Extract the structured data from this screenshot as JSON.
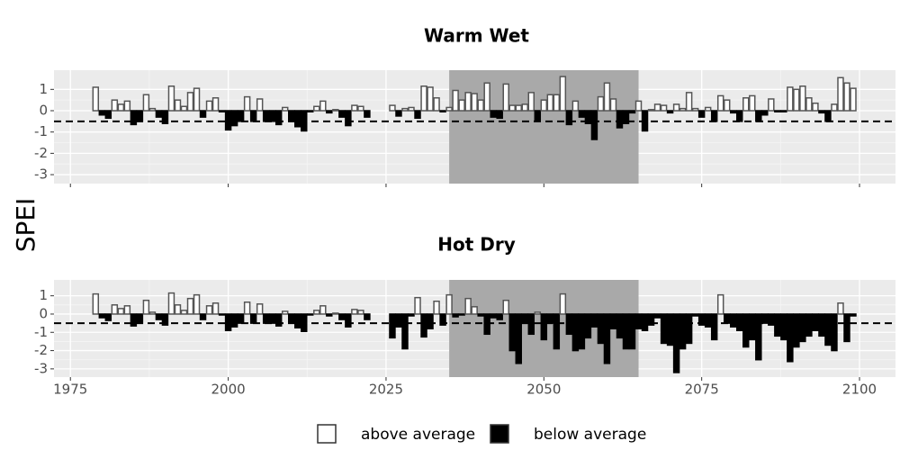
{
  "chart_data": [
    {
      "type": "bar",
      "title": "Warm Wet",
      "x": [
        1979,
        1980,
        1981,
        1982,
        1983,
        1984,
        1985,
        1986,
        1987,
        1988,
        1989,
        1990,
        1991,
        1992,
        1993,
        1994,
        1995,
        1996,
        1997,
        1998,
        1999,
        2000,
        2001,
        2002,
        2003,
        2004,
        2005,
        2006,
        2007,
        2008,
        2009,
        2010,
        2011,
        2012,
        2013,
        2014,
        2015,
        2016,
        2017,
        2018,
        2019,
        2020,
        2021,
        2022,
        2026,
        2027,
        2028,
        2029,
        2030,
        2031,
        2032,
        2033,
        2034,
        2035,
        2036,
        2037,
        2038,
        2039,
        2040,
        2041,
        2042,
        2043,
        2044,
        2045,
        2046,
        2047,
        2048,
        2049,
        2050,
        2051,
        2052,
        2053,
        2054,
        2055,
        2056,
        2057,
        2058,
        2059,
        2060,
        2061,
        2062,
        2063,
        2064,
        2065,
        2066,
        2067,
        2068,
        2069,
        2070,
        2071,
        2072,
        2073,
        2074,
        2075,
        2076,
        2077,
        2078,
        2079,
        2080,
        2081,
        2082,
        2083,
        2084,
        2085,
        2086,
        2087,
        2088,
        2089,
        2090,
        2091,
        2092,
        2093,
        2094,
        2095,
        2096,
        2097,
        2098,
        2099
      ],
      "values": [
        1.1,
        -0.2,
        -0.35,
        0.5,
        0.3,
        0.45,
        -0.65,
        -0.5,
        0.75,
        0.1,
        -0.3,
        -0.6,
        1.15,
        0.5,
        0.2,
        0.85,
        1.05,
        -0.3,
        0.45,
        0.6,
        -0.05,
        -0.9,
        -0.7,
        -0.5,
        0.65,
        -0.5,
        0.55,
        -0.5,
        -0.5,
        -0.65,
        0.15,
        -0.5,
        -0.75,
        -0.95,
        -0.05,
        0.2,
        0.45,
        -0.1,
        0.05,
        -0.3,
        -0.7,
        0.25,
        0.2,
        -0.3,
        0.25,
        -0.25,
        0.1,
        0.15,
        -0.35,
        1.15,
        1.1,
        0.6,
        -0.05,
        0.15,
        0.95,
        0.5,
        0.85,
        0.8,
        0.5,
        1.3,
        -0.3,
        -0.35,
        1.25,
        0.25,
        0.25,
        0.3,
        0.85,
        -0.45,
        0.5,
        0.75,
        0.75,
        1.6,
        -0.65,
        0.45,
        -0.3,
        -0.6,
        -1.35,
        0.65,
        1.3,
        0.55,
        -0.8,
        -0.6,
        -0.1,
        0.45,
        -0.95,
        0.05,
        0.3,
        0.25,
        -0.1,
        0.3,
        0.1,
        0.85,
        0.1,
        -0.3,
        0.15,
        -0.5,
        0.7,
        0.5,
        -0.1,
        -0.5,
        0.6,
        0.7,
        -0.5,
        -0.2,
        0.55,
        -0.05,
        -0.05,
        1.1,
        1.0,
        1.15,
        0.6,
        0.35,
        -0.1,
        -0.5,
        0.3,
        1.55,
        1.3,
        1.05
      ],
      "xlim": [
        1972.4,
        2105.7
      ],
      "ylim": [
        -3.42,
        1.9
      ],
      "xticks": [
        1975,
        2000,
        2025,
        2050,
        2075,
        2100
      ],
      "yticks": [
        1,
        0,
        -1,
        -2,
        -3
      ],
      "highlight": [
        2035,
        2065
      ],
      "reference_line": -0.5,
      "grid": true,
      "colors": {
        "above": "#ffffff",
        "below": "#000000"
      }
    },
    {
      "type": "bar",
      "title": "Hot Dry",
      "x": [
        1979,
        1980,
        1981,
        1982,
        1983,
        1984,
        1985,
        1986,
        1987,
        1988,
        1989,
        1990,
        1991,
        1992,
        1993,
        1994,
        1995,
        1996,
        1997,
        1998,
        1999,
        2000,
        2001,
        2002,
        2003,
        2004,
        2005,
        2006,
        2007,
        2008,
        2009,
        2010,
        2011,
        2012,
        2013,
        2014,
        2015,
        2016,
        2017,
        2018,
        2019,
        2020,
        2021,
        2022,
        2026,
        2027,
        2028,
        2029,
        2030,
        2031,
        2032,
        2033,
        2034,
        2035,
        2036,
        2037,
        2038,
        2039,
        2040,
        2041,
        2042,
        2043,
        2044,
        2045,
        2046,
        2047,
        2048,
        2049,
        2050,
        2051,
        2052,
        2053,
        2054,
        2055,
        2056,
        2057,
        2058,
        2059,
        2060,
        2061,
        2062,
        2063,
        2064,
        2065,
        2066,
        2067,
        2068,
        2069,
        2070,
        2071,
        2072,
        2073,
        2074,
        2075,
        2076,
        2077,
        2078,
        2079,
        2080,
        2081,
        2082,
        2083,
        2084,
        2085,
        2086,
        2087,
        2088,
        2089,
        2090,
        2091,
        2092,
        2093,
        2094,
        2095,
        2096,
        2097,
        2098,
        2099
      ],
      "values": [
        1.1,
        -0.2,
        -0.35,
        0.5,
        0.3,
        0.45,
        -0.65,
        -0.5,
        0.75,
        0.1,
        -0.3,
        -0.6,
        1.15,
        0.5,
        0.2,
        0.85,
        1.05,
        -0.3,
        0.45,
        0.6,
        -0.05,
        -0.9,
        -0.7,
        -0.5,
        0.65,
        -0.5,
        0.55,
        -0.5,
        -0.5,
        -0.65,
        0.15,
        -0.5,
        -0.75,
        -0.95,
        -0.05,
        0.2,
        0.45,
        -0.1,
        0.05,
        -0.3,
        -0.7,
        0.25,
        0.2,
        -0.3,
        -1.3,
        -0.7,
        -1.9,
        -0.1,
        0.9,
        -1.25,
        -0.8,
        0.7,
        -0.6,
        1.05,
        -0.15,
        -0.05,
        0.85,
        0.4,
        -0.1,
        -1.1,
        -0.2,
        -0.3,
        0.75,
        -2.0,
        -2.7,
        -0.5,
        -1.1,
        0.1,
        -1.4,
        -0.5,
        -1.9,
        1.1,
        -1.1,
        -2.0,
        -1.9,
        -1.3,
        -0.7,
        -1.6,
        -2.7,
        -0.8,
        -1.3,
        -1.9,
        -1.9,
        -0.8,
        -0.9,
        -0.6,
        -0.2,
        -1.6,
        -1.7,
        -3.2,
        -1.9,
        -1.6,
        -0.1,
        -0.6,
        -0.7,
        -1.4,
        1.05,
        -0.5,
        -0.7,
        -0.9,
        -1.8,
        -1.4,
        -2.5,
        -0.5,
        -0.6,
        -1.2,
        -1.4,
        -2.6,
        -1.8,
        -1.5,
        -1.2,
        -0.9,
        -1.2,
        -1.7,
        -2.0,
        0.6,
        -1.5,
        -0.1
      ],
      "xlim": [
        1972.4,
        2105.7
      ],
      "ylim": [
        -3.45,
        1.87
      ],
      "xticks": [
        1975,
        2000,
        2025,
        2050,
        2075,
        2100
      ],
      "yticks": [
        1,
        0,
        -1,
        -2,
        -3
      ],
      "highlight": [
        2035,
        2065
      ],
      "reference_line": -0.5,
      "grid": true,
      "colors": {
        "above": "#ffffff",
        "below": "#000000"
      }
    }
  ],
  "y_label": "SPEI",
  "legend": [
    {
      "name": "above average",
      "color": "#ffffff"
    },
    {
      "name": "below average",
      "color": "#000000"
    }
  ]
}
